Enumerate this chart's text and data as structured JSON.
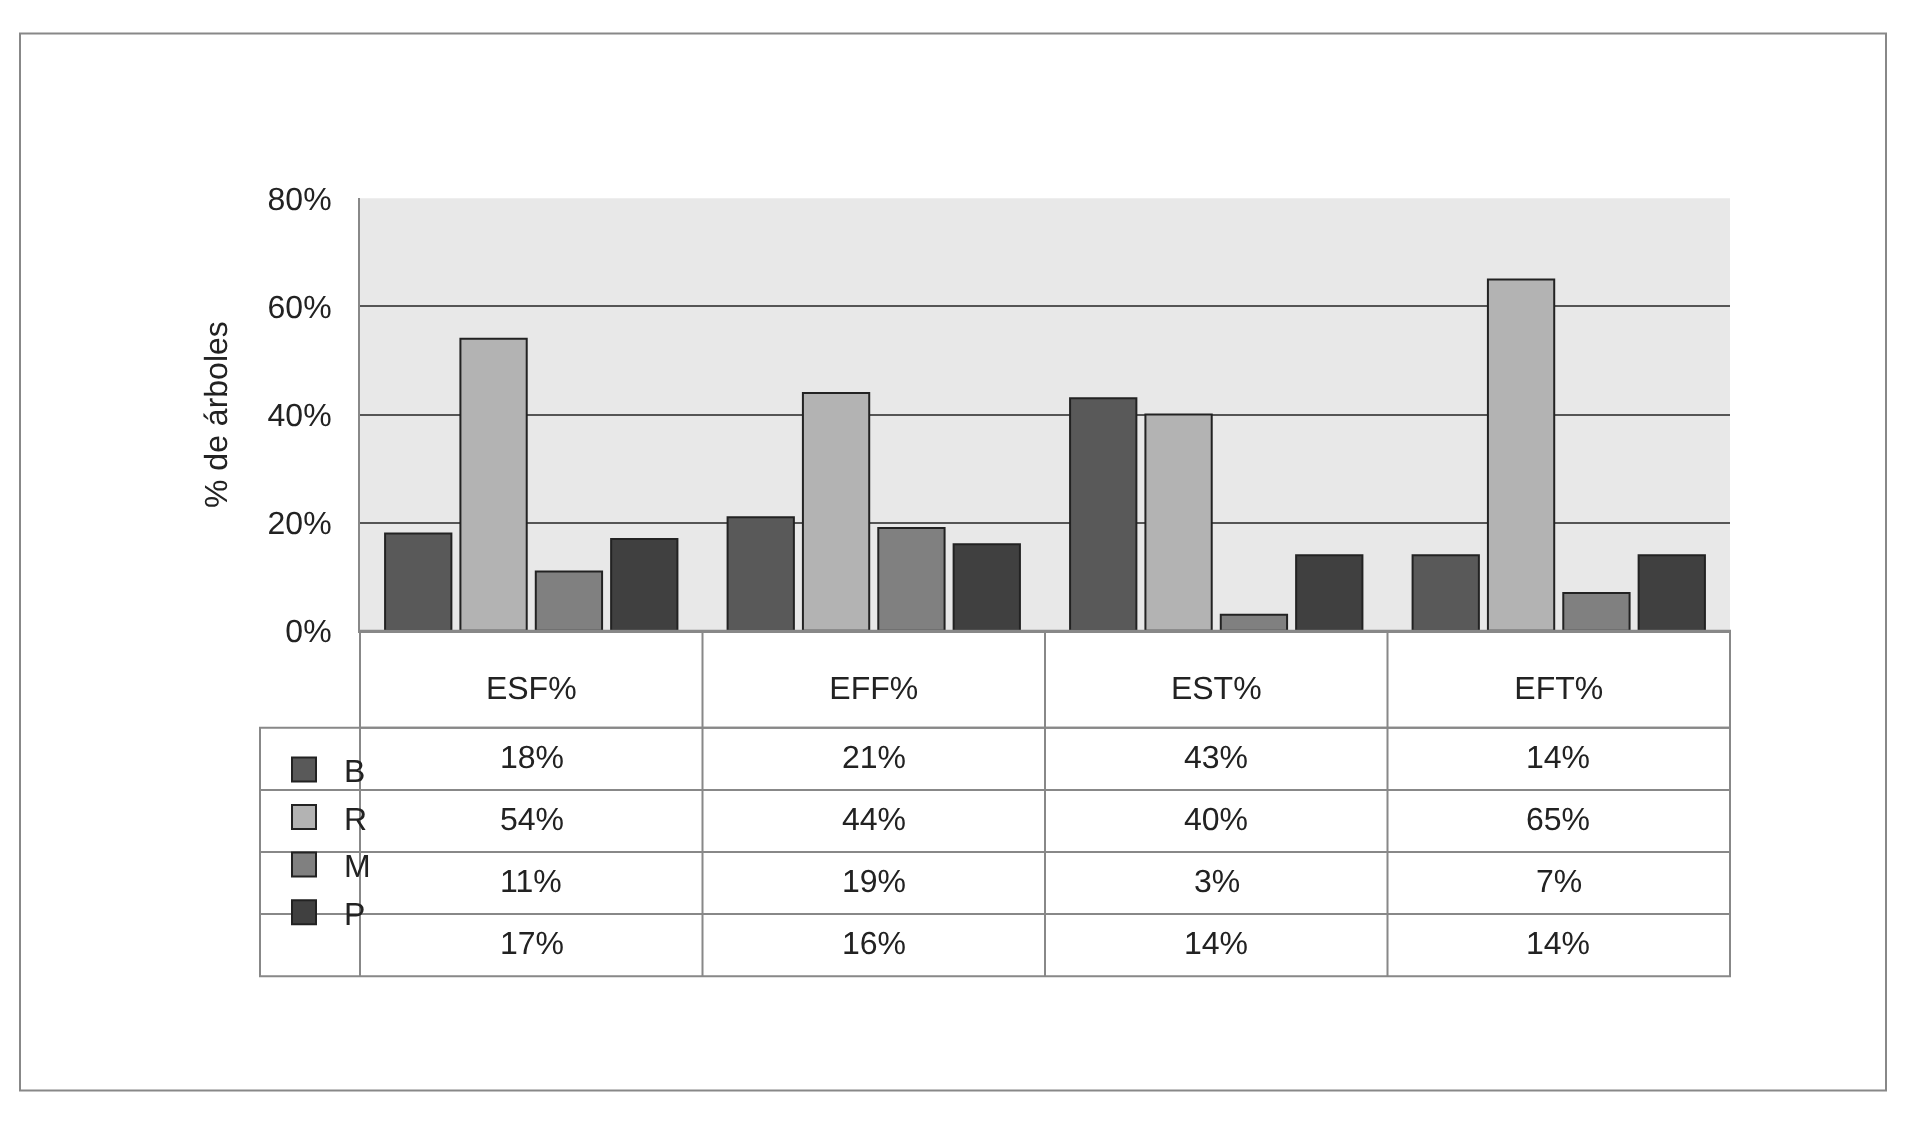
{
  "chart_data": {
    "type": "bar",
    "ylabel": "% de árboles",
    "categories": [
      "ESF%",
      "EFF%",
      "EST%",
      "EFT%"
    ],
    "series": [
      {
        "name": "B",
        "color": "#595959",
        "values": [
          18,
          21,
          43,
          14
        ],
        "value_labels": [
          "18%",
          "21%",
          "43%",
          "14%"
        ]
      },
      {
        "name": "R",
        "color": "#b3b3b3",
        "values": [
          54,
          44,
          40,
          65
        ],
        "value_labels": [
          "54%",
          "44%",
          "40%",
          "65%"
        ]
      },
      {
        "name": "M",
        "color": "#808080",
        "values": [
          11,
          19,
          3,
          7
        ],
        "value_labels": [
          "11%",
          "19%",
          "3%",
          "7%"
        ]
      },
      {
        "name": "P",
        "color": "#404040",
        "values": [
          17,
          16,
          14,
          14
        ],
        "value_labels": [
          "17%",
          "16%",
          "14%",
          "14%"
        ]
      }
    ],
    "ylim": [
      0,
      80
    ],
    "yticks": [
      {
        "value": 0,
        "label": "0%"
      },
      {
        "value": 20,
        "label": "20%"
      },
      {
        "value": 40,
        "label": "40%"
      },
      {
        "value": 60,
        "label": "60%"
      },
      {
        "value": 80,
        "label": "80%"
      }
    ],
    "grid": "y",
    "legend": "bottom left"
  }
}
